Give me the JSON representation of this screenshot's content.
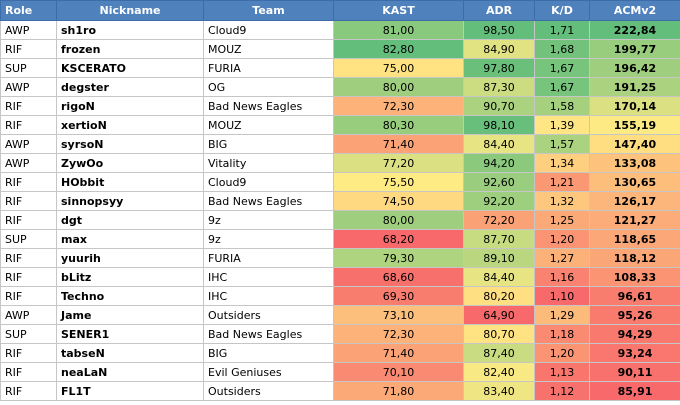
{
  "headers": {
    "role": "Role",
    "nickname": "Nickname",
    "team": "Team",
    "kast": "KAST",
    "adr": "ADR",
    "kd": "K/D",
    "acm": "ACMv2"
  },
  "rows": [
    {
      "role": "AWP",
      "nickname": "sh1ro",
      "team": "Cloud9",
      "kast": "81,00",
      "adr": "98,50",
      "kd": "1,71",
      "acm": "222,84"
    },
    {
      "role": "RIF",
      "nickname": "frozen",
      "team": "MOUZ",
      "kast": "82,80",
      "adr": "84,90",
      "kd": "1,68",
      "acm": "199,77"
    },
    {
      "role": "SUP",
      "nickname": "KSCERATO",
      "team": "FURIA",
      "kast": "75,00",
      "adr": "97,80",
      "kd": "1,67",
      "acm": "196,42"
    },
    {
      "role": "AWP",
      "nickname": "degster",
      "team": "OG",
      "kast": "80,00",
      "adr": "87,30",
      "kd": "1,67",
      "acm": "191,25"
    },
    {
      "role": "RIF",
      "nickname": "rigoN",
      "team": "Bad News Eagles",
      "kast": "72,30",
      "adr": "90,70",
      "kd": "1,58",
      "acm": "170,14"
    },
    {
      "role": "RIF",
      "nickname": "xertioN",
      "team": "MOUZ",
      "kast": "80,30",
      "adr": "98,10",
      "kd": "1,39",
      "acm": "155,19"
    },
    {
      "role": "AWP",
      "nickname": "syrsoN",
      "team": "BIG",
      "kast": "71,40",
      "adr": "84,40",
      "kd": "1,57",
      "acm": "147,40"
    },
    {
      "role": "AWP",
      "nickname": "ZywOo",
      "team": "Vitality",
      "kast": "77,20",
      "adr": "94,20",
      "kd": "1,34",
      "acm": "133,08"
    },
    {
      "role": "RIF",
      "nickname": "HObbit",
      "team": "Cloud9",
      "kast": "75,50",
      "adr": "92,60",
      "kd": "1,21",
      "acm": "130,65"
    },
    {
      "role": "RIF",
      "nickname": "sinnopsyy",
      "team": "Bad News Eagles",
      "kast": "74,50",
      "adr": "92,20",
      "kd": "1,32",
      "acm": "126,17"
    },
    {
      "role": "RIF",
      "nickname": "dgt",
      "team": "9z",
      "kast": "80,00",
      "adr": "72,20",
      "kd": "1,25",
      "acm": "121,27"
    },
    {
      "role": "SUP",
      "nickname": "max",
      "team": "9z",
      "kast": "68,20",
      "adr": "87,70",
      "kd": "1,20",
      "acm": "118,65"
    },
    {
      "role": "RIF",
      "nickname": "yuurih",
      "team": "FURIA",
      "kast": "79,30",
      "adr": "89,10",
      "kd": "1,27",
      "acm": "118,12"
    },
    {
      "role": "RIF",
      "nickname": "bLitz",
      "team": "IHC",
      "kast": "68,60",
      "adr": "84,40",
      "kd": "1,16",
      "acm": "108,33"
    },
    {
      "role": "RIF",
      "nickname": "Techno",
      "team": "IHC",
      "kast": "69,30",
      "adr": "80,20",
      "kd": "1,10",
      "acm": "96,61"
    },
    {
      "role": "AWP",
      "nickname": "Jame",
      "team": "Outsiders",
      "kast": "73,10",
      "adr": "64,90",
      "kd": "1,29",
      "acm": "95,26"
    },
    {
      "role": "SUP",
      "nickname": "SENER1",
      "team": "Bad News Eagles",
      "kast": "72,30",
      "adr": "80,70",
      "kd": "1,18",
      "acm": "94,29"
    },
    {
      "role": "RIF",
      "nickname": "tabseN",
      "team": "BIG",
      "kast": "71,40",
      "adr": "87,40",
      "kd": "1,20",
      "acm": "93,24"
    },
    {
      "role": "RIF",
      "nickname": "neaLaN",
      "team": "Evil Geniuses",
      "kast": "70,10",
      "adr": "82,40",
      "kd": "1,13",
      "acm": "90,11"
    },
    {
      "role": "RIF",
      "nickname": "FL1T",
      "team": "Outsiders",
      "kast": "71,80",
      "adr": "83,40",
      "kd": "1,12",
      "acm": "85,91"
    }
  ],
  "colors": {
    "header_bg": "#4f81bd",
    "header_text": "#ffffff",
    "scale_low": "#f8696b",
    "scale_mid": "#ffeb84",
    "scale_high": "#63be7b"
  }
}
